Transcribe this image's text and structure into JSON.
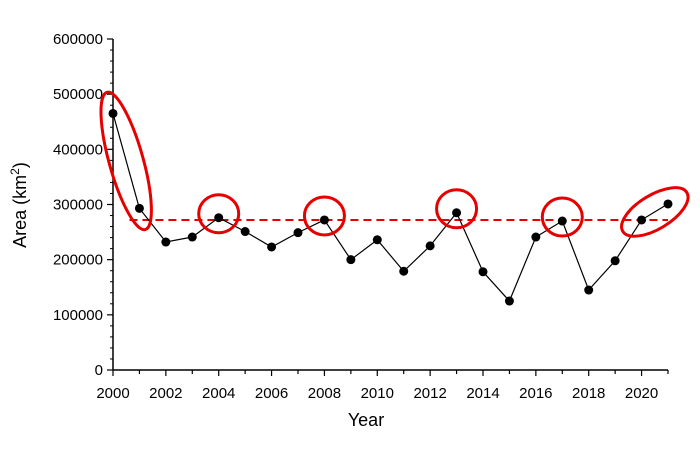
{
  "chart_data": {
    "type": "line",
    "xlabel": "Year",
    "ylabel": "Area (km",
    "ylabel_sup": "2",
    "ylabel_close": ")",
    "xlim": [
      2000,
      2021
    ],
    "ylim": [
      0,
      600000
    ],
    "x_ticks": [
      2000,
      2002,
      2004,
      2006,
      2008,
      2010,
      2012,
      2014,
      2016,
      2018,
      2020
    ],
    "y_ticks": [
      0,
      100000,
      200000,
      300000,
      400000,
      500000,
      600000
    ],
    "grid": false,
    "series": [
      {
        "x": [
          2000,
          2001,
          2002,
          2003,
          2004,
          2005,
          2006,
          2007,
          2008,
          2009,
          2010,
          2011,
          2012,
          2013,
          2014,
          2015,
          2016,
          2017,
          2018,
          2019,
          2020,
          2021
        ],
        "values": [
          465000,
          293000,
          232000,
          241000,
          276000,
          251000,
          223000,
          249000,
          272000,
          200000,
          236000,
          179000,
          225000,
          285000,
          178000,
          125000,
          241000,
          270000,
          145000,
          198000,
          272000,
          301000
        ],
        "color": "#000000"
      }
    ],
    "reference_line": {
      "value": 272000,
      "color": "#e60000",
      "style": "dashed"
    },
    "highlights": [
      {
        "shape": "ellipse",
        "from": [
          2000,
          465000
        ],
        "to": [
          2001,
          293000
        ],
        "color": "#e60000"
      },
      {
        "shape": "circle",
        "at": [
          2004,
          276000
        ],
        "color": "#e60000"
      },
      {
        "shape": "circle",
        "at": [
          2008,
          272000
        ],
        "color": "#e60000"
      },
      {
        "shape": "circle",
        "at": [
          2013,
          285000
        ],
        "color": "#e60000"
      },
      {
        "shape": "circle",
        "at": [
          2017,
          270000
        ],
        "color": "#e60000"
      },
      {
        "shape": "ellipse",
        "from": [
          2020,
          272000
        ],
        "to": [
          2021,
          301000
        ],
        "color": "#e60000"
      }
    ]
  }
}
